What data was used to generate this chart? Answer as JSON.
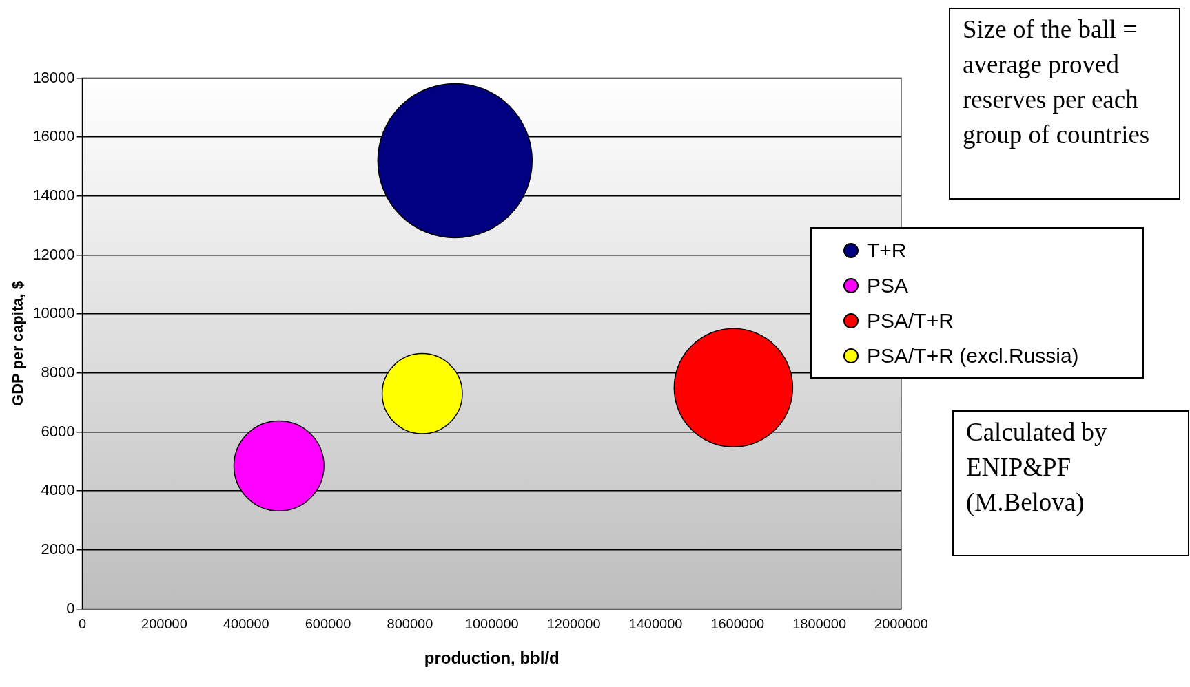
{
  "chart_data": {
    "type": "bubble",
    "xlabel": "production, bbl/d",
    "ylabel": "GDP per capita, $",
    "annotations": [
      "Size of the ball = average proved reserves per each group of countries",
      "Calculated by ENIP&PF (M.Belova)"
    ],
    "series": [
      {
        "name": "T+R",
        "color": "#000080",
        "x": [
          910000
        ],
        "values": [
          15200
        ],
        "sizes": [
          1
        ]
      },
      {
        "name": "PSA",
        "color": "#ff00ff",
        "x": [
          480000
        ],
        "values": [
          4850
        ],
        "sizes": [
          0.34
        ]
      },
      {
        "name": "PSA/T+R",
        "color": "#ff0000",
        "x": [
          1590000
        ],
        "values": [
          7500
        ],
        "sizes": [
          0.59
        ]
      },
      {
        "name": "PSA/T+R (excl.Russia)",
        "color": "#ffff00",
        "x": [
          830000
        ],
        "values": [
          7300
        ],
        "sizes": [
          0.27
        ]
      }
    ],
    "xlim": [
      0,
      2000000
    ],
    "xticks": [
      0,
      200000,
      400000,
      600000,
      800000,
      1000000,
      1200000,
      1400000,
      1600000,
      1800000,
      2000000
    ],
    "ylim": [
      0,
      18000
    ],
    "yticks": [
      0,
      2000,
      4000,
      6000,
      8000,
      10000,
      12000,
      14000,
      16000,
      18000
    ],
    "grid": "y",
    "legend": "right"
  }
}
